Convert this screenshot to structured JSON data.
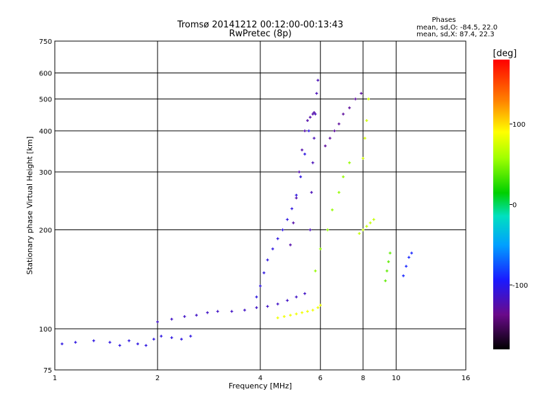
{
  "chart_data": {
    "type": "scatter",
    "title": "Tromsø 20141212 00:12:00-00:13:43",
    "subtitle": "RwPretec (8p)",
    "xlabel": "Frequency [MHz]",
    "ylabel": "Stationary phase Virtual Height [km]",
    "x_scale": "log",
    "y_scale": "log",
    "xlim": [
      1,
      16
    ],
    "ylim": [
      75,
      750
    ],
    "x_ticks": [
      1,
      2,
      4,
      6,
      8,
      10,
      16
    ],
    "x_tick_labels": [
      "1",
      "2",
      "4",
      "6",
      "8",
      "10",
      "16"
    ],
    "y_ticks": [
      75,
      100,
      200,
      300,
      400,
      500,
      600,
      750
    ],
    "y_tick_labels": [
      "75",
      "100",
      "200",
      "300",
      "400",
      "500",
      "600",
      "750"
    ],
    "grid": true,
    "phases_info": {
      "title": "Phases",
      "line_o": "mean, sd,O: -84.5, 22.0",
      "line_x": "mean, sd,X:  87.4, 22.3"
    },
    "colorbar": {
      "label": "[deg]",
      "range": [
        -180,
        180
      ],
      "ticks": [
        100,
        0,
        -100
      ],
      "tick_labels": [
        "100",
        "0",
        "-100"
      ]
    },
    "traces": [
      {
        "name": "",
        "phase": -105,
        "x": [
          1.05,
          1.15,
          1.3,
          1.45,
          1.55,
          1.65,
          1.75,
          1.85,
          1.95,
          2.05,
          2.2,
          2.35,
          2.5
        ],
        "y": [
          90,
          91,
          92,
          91,
          89,
          92,
          90,
          89,
          93,
          95,
          94,
          93,
          95
        ]
      },
      {
        "name": "",
        "phase": -115,
        "x": [
          2.0,
          2.2,
          2.4,
          2.6,
          2.8,
          3.0,
          3.3,
          3.6,
          3.9,
          4.2,
          4.5,
          4.8,
          5.1,
          5.4
        ],
        "y": [
          105,
          107,
          109,
          110,
          112,
          113,
          113,
          114,
          116,
          117,
          119,
          122,
          125,
          128
        ]
      },
      {
        "name": "",
        "phase": -105,
        "x": [
          3.9,
          4.0,
          4.1,
          4.2,
          4.35,
          4.5,
          4.65,
          4.8,
          4.95,
          5.1,
          5.25,
          5.4,
          5.55
        ],
        "y": [
          125,
          135,
          148,
          162,
          175,
          188,
          200,
          215,
          232,
          255,
          290,
          340,
          400
        ]
      },
      {
        "name": "",
        "phase": -125,
        "x": [
          4.9,
          5.0,
          5.1,
          5.2,
          5.3,
          5.4,
          5.5,
          5.6,
          5.7,
          5.75
        ],
        "y": [
          180,
          210,
          250,
          300,
          350,
          400,
          430,
          440,
          450,
          455
        ]
      },
      {
        "name": "",
        "phase": -120,
        "x": [
          5.6,
          5.65,
          5.7,
          5.75,
          5.8,
          5.85,
          5.9
        ],
        "y": [
          200,
          260,
          320,
          380,
          450,
          520,
          570
        ]
      },
      {
        "name": "",
        "phase": 85,
        "x": [
          4.5,
          4.7,
          4.9,
          5.1,
          5.3,
          5.5,
          5.7,
          5.9,
          6.0
        ],
        "y": [
          108,
          109,
          110,
          111,
          112,
          113,
          114,
          116,
          118
        ]
      },
      {
        "name": "",
        "phase": 55,
        "x": [
          5.8,
          6.0,
          6.3,
          6.5,
          6.8,
          7.0,
          7.3
        ],
        "y": [
          150,
          175,
          200,
          230,
          260,
          290,
          320
        ]
      },
      {
        "name": "",
        "phase": 70,
        "x": [
          7.8,
          8.0,
          8.2,
          8.4,
          8.6
        ],
        "y": [
          195,
          200,
          205,
          210,
          215
        ]
      },
      {
        "name": "",
        "phase": 75,
        "x": [
          8.0,
          8.1,
          8.2,
          8.3
        ],
        "y": [
          330,
          380,
          430,
          500
        ]
      },
      {
        "name": "",
        "phase": -130,
        "x": [
          6.2,
          6.4,
          6.6,
          6.8,
          7.0,
          7.3,
          7.6,
          7.9
        ],
        "y": [
          360,
          380,
          400,
          420,
          450,
          470,
          500,
          520
        ]
      },
      {
        "name": "",
        "phase": 40,
        "x": [
          9.3,
          9.4,
          9.5,
          9.6
        ],
        "y": [
          140,
          150,
          160,
          170
        ]
      },
      {
        "name": "",
        "phase": -90,
        "x": [
          10.5,
          10.7,
          10.9,
          11.1
        ],
        "y": [
          145,
          155,
          165,
          170
        ]
      }
    ]
  }
}
